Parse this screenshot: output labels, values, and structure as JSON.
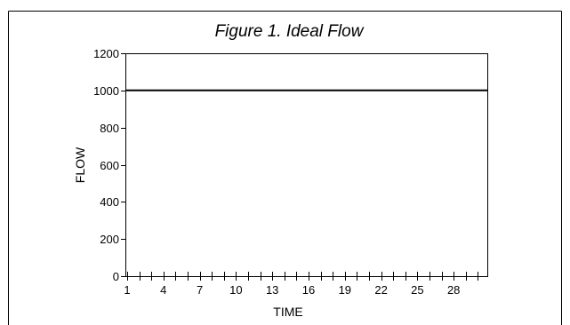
{
  "chart_data": {
    "type": "line",
    "title": "Figure 1. Ideal Flow",
    "xlabel": "TIME",
    "ylabel": "FLOW",
    "xlim": [
      1,
      30
    ],
    "ylim": [
      0,
      1200
    ],
    "y_ticks": [
      0,
      200,
      400,
      600,
      800,
      1000,
      1200
    ],
    "x_tick_labels": [
      1,
      4,
      7,
      10,
      13,
      16,
      19,
      22,
      25,
      28
    ],
    "grid": false,
    "series": [
      {
        "color": "#000000",
        "x": [
          1,
          2,
          3,
          4,
          5,
          6,
          7,
          8,
          9,
          10,
          11,
          12,
          13,
          14,
          15,
          16,
          17,
          18,
          19,
          20,
          21,
          22,
          23,
          24,
          25,
          26,
          27,
          28,
          29,
          30
        ],
        "values": [
          1000,
          1000,
          1000,
          1000,
          1000,
          1000,
          1000,
          1000,
          1000,
          1000,
          1000,
          1000,
          1000,
          1000,
          1000,
          1000,
          1000,
          1000,
          1000,
          1000,
          1000,
          1000,
          1000,
          1000,
          1000,
          1000,
          1000,
          1000,
          1000,
          1000
        ]
      }
    ]
  }
}
